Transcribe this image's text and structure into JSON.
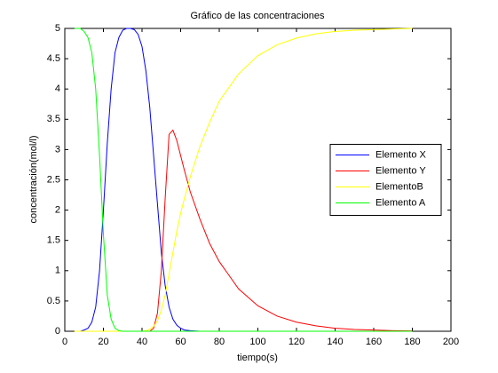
{
  "chart_data": {
    "type": "line",
    "title": "Gráfico de las concentraciones",
    "x_label": "tiempo(s)",
    "y_label": "concentración(mol/l)",
    "x": [
      5,
      8,
      10,
      12,
      14,
      16,
      18,
      20,
      22,
      24,
      26,
      28,
      30,
      32,
      34,
      36,
      38,
      40,
      42,
      44,
      46,
      48,
      50,
      52,
      54,
      56,
      58,
      60,
      62,
      65,
      70,
      75,
      80,
      90,
      100,
      110,
      120,
      130,
      140,
      150,
      160,
      170,
      180
    ],
    "series": [
      {
        "name": "Elemento X",
        "color": "#0000ff",
        "values": [
          0,
          0,
          0.02,
          0.05,
          0.15,
          0.4,
          1.0,
          2.0,
          3.1,
          4.0,
          4.6,
          4.85,
          4.97,
          5,
          5,
          4.98,
          4.9,
          4.7,
          4.3,
          3.7,
          2.9,
          2.1,
          1.3,
          0.75,
          0.4,
          0.2,
          0.1,
          0.05,
          0.02,
          0.01,
          0,
          0,
          0,
          0,
          0,
          0,
          0,
          0,
          0,
          0,
          0,
          0,
          0
        ]
      },
      {
        "name": "Elemento Y",
        "color": "#ff0000",
        "values": [
          0,
          0,
          0,
          0,
          0,
          0,
          0,
          0,
          0,
          0,
          0,
          0,
          0,
          0,
          0,
          0,
          0,
          0,
          0,
          0,
          0.05,
          0.3,
          1.0,
          2.2,
          3.25,
          3.32,
          3.15,
          2.9,
          2.65,
          2.3,
          1.85,
          1.45,
          1.15,
          0.7,
          0.42,
          0.25,
          0.15,
          0.09,
          0.05,
          0.03,
          0.02,
          0.01,
          0.005
        ]
      },
      {
        "name": "ElementoB",
        "color": "#ffff00",
        "values": [
          0,
          0,
          0,
          0,
          0,
          0,
          0,
          0,
          0,
          0,
          0,
          0,
          0,
          0,
          0,
          0,
          0,
          0,
          0.01,
          0.03,
          0.08,
          0.17,
          0.35,
          0.6,
          0.95,
          1.3,
          1.65,
          1.95,
          2.2,
          2.55,
          3.05,
          3.45,
          3.8,
          4.25,
          4.55,
          4.73,
          4.84,
          4.91,
          4.95,
          4.97,
          4.98,
          4.99,
          5
        ]
      },
      {
        "name": "Elemento A",
        "color": "#00ff00",
        "values": [
          5,
          5,
          4.95,
          4.85,
          4.6,
          4.0,
          2.9,
          1.6,
          0.6,
          0.2,
          0.05,
          0.01,
          0,
          0,
          0,
          0,
          0,
          0,
          0,
          0,
          0,
          0,
          0,
          0,
          0,
          0,
          0,
          0,
          0,
          0,
          0,
          0,
          0,
          0,
          0,
          0,
          0,
          0,
          0,
          0,
          0,
          0,
          0
        ]
      }
    ],
    "xlim": [
      0,
      200
    ],
    "ylim": [
      0,
      5
    ],
    "xticks": [
      0,
      20,
      40,
      60,
      80,
      100,
      120,
      140,
      160,
      180,
      200
    ],
    "yticks": [
      0,
      0.5,
      1,
      1.5,
      2,
      2.5,
      3,
      3.5,
      4,
      4.5,
      5
    ],
    "legend": "east"
  }
}
